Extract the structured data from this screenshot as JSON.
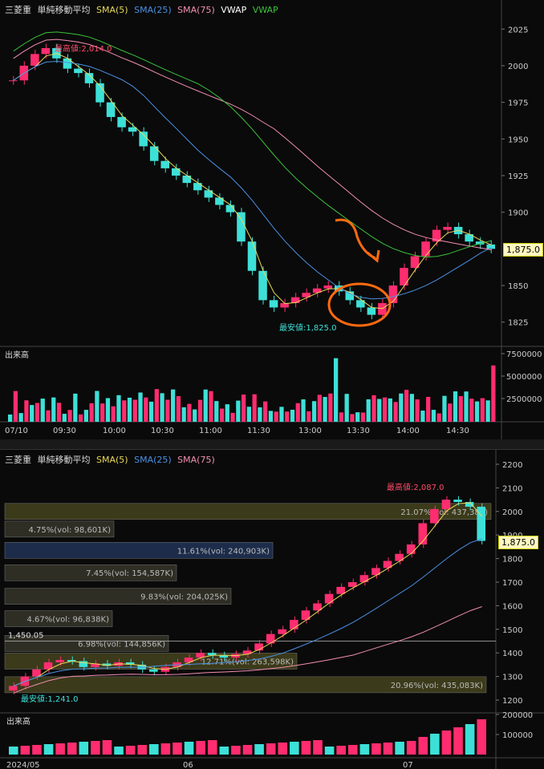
{
  "charts": [
    {
      "id": "intraday",
      "symbol": "三菱重",
      "indicator": "単純移動平均",
      "legend": [
        {
          "label": "SMA(5)",
          "color": "#e8d95a"
        },
        {
          "label": "SMA(25)",
          "color": "#4a90e2"
        },
        {
          "label": "SMA(75)",
          "color": "#f08fb0"
        },
        {
          "label": "VWAP",
          "color": "#ffffff"
        },
        {
          "label": "VWAP",
          "color": "#3cc23c"
        }
      ],
      "y_ticks": [
        "2025",
        "2000",
        "1975",
        "1950",
        "1925",
        "1900",
        "1850",
        "1825"
      ],
      "last_price": "1,875.0",
      "high_annotation": "最高値:2,014.0",
      "low_annotation": "最安値:1,825.0",
      "volume_title": "出来高",
      "volume_ticks": [
        "7500000",
        "5000000",
        "2500000"
      ],
      "x_ticks": [
        "07/10",
        "09:30",
        "10:00",
        "10:30",
        "11:00",
        "11:30",
        "13:00",
        "13:30",
        "14:00",
        "14:30"
      ]
    },
    {
      "id": "daily",
      "symbol": "三菱重",
      "indicator": "単純移動平均",
      "legend": [
        {
          "label": "SMA(5)",
          "color": "#e8d95a"
        },
        {
          "label": "SMA(25)",
          "color": "#4a90e2"
        },
        {
          "label": "SMA(75)",
          "color": "#f08fb0"
        }
      ],
      "y_ticks": [
        "2200",
        "2100",
        "2000",
        "1900",
        "1800",
        "1700",
        "1600",
        "1500",
        "1400",
        "1300",
        "1200"
      ],
      "last_price": "1,875.0",
      "high_annotation": "最高値:2,087.0",
      "low_annotation": "最安値:1,241.0",
      "hline_label": "1,450.05",
      "volume_title": "出来高",
      "volume_ticks": [
        "200000",
        "100000"
      ],
      "x_ticks": [
        "2024/05",
        "06",
        "07"
      ],
      "profile_labels": [
        "21.07%(vol: 437,384)",
        "4.75%(vol: 98,601K)",
        "11.61%(vol: 240,903K)",
        "7.45%(vol: 154,587K)",
        "9.83%(vol: 204,025K)",
        "4.67%(vol: 96,838K)",
        "6.98%(vol: 144,856K)",
        "12.71%(vol: 263,598K)",
        "20.96%(vol: 435,083K)"
      ]
    }
  ],
  "chart_data": [
    {
      "type": "candlestick",
      "title": "三菱重 単純移動平均",
      "x_ticks": [
        "07/10",
        "09:30",
        "10:00",
        "10:30",
        "11:00",
        "11:30",
        "13:00",
        "13:30",
        "14:00",
        "14:30"
      ],
      "ylim": [
        1815,
        2035
      ],
      "y_ticks": [
        1825,
        1850,
        1900,
        1925,
        1950,
        1975,
        2000,
        2025
      ],
      "series_close": [
        1990,
        2000,
        2008,
        2012,
        2005,
        1998,
        1995,
        1988,
        1975,
        1965,
        1958,
        1955,
        1945,
        1935,
        1930,
        1925,
        1920,
        1915,
        1910,
        1905,
        1900,
        1880,
        1860,
        1840,
        1835,
        1838,
        1842,
        1845,
        1848,
        1850,
        1846,
        1840,
        1835,
        1830,
        1838,
        1850,
        1862,
        1870,
        1880,
        1888,
        1890,
        1885,
        1880,
        1878,
        1875
      ],
      "sma5_end": 1875,
      "high": 2014.0,
      "low": 1825.0,
      "last": 1875.0,
      "volume_ylim": [
        0,
        7500000
      ]
    },
    {
      "type": "candlestick",
      "title": "三菱重 単純移動平均",
      "x_ticks": [
        "2024/05",
        "06",
        "07"
      ],
      "ylim": [
        1200,
        2200
      ],
      "y_ticks": [
        1200,
        1300,
        1400,
        1500,
        1600,
        1700,
        1800,
        1900,
        2000,
        2100,
        2200
      ],
      "series_close": [
        1260,
        1300,
        1330,
        1360,
        1370,
        1365,
        1340,
        1355,
        1345,
        1360,
        1350,
        1330,
        1320,
        1340,
        1360,
        1380,
        1400,
        1390,
        1380,
        1395,
        1410,
        1440,
        1480,
        1500,
        1540,
        1580,
        1610,
        1650,
        1680,
        1700,
        1730,
        1760,
        1790,
        1820,
        1860,
        1950,
        2010,
        2050,
        2040,
        2020,
        1875
      ],
      "high": 2087.0,
      "low": 1241.0,
      "last": 1875.0,
      "hline": 1450.05,
      "volume_ylim": [
        0,
        200000
      ]
    }
  ]
}
